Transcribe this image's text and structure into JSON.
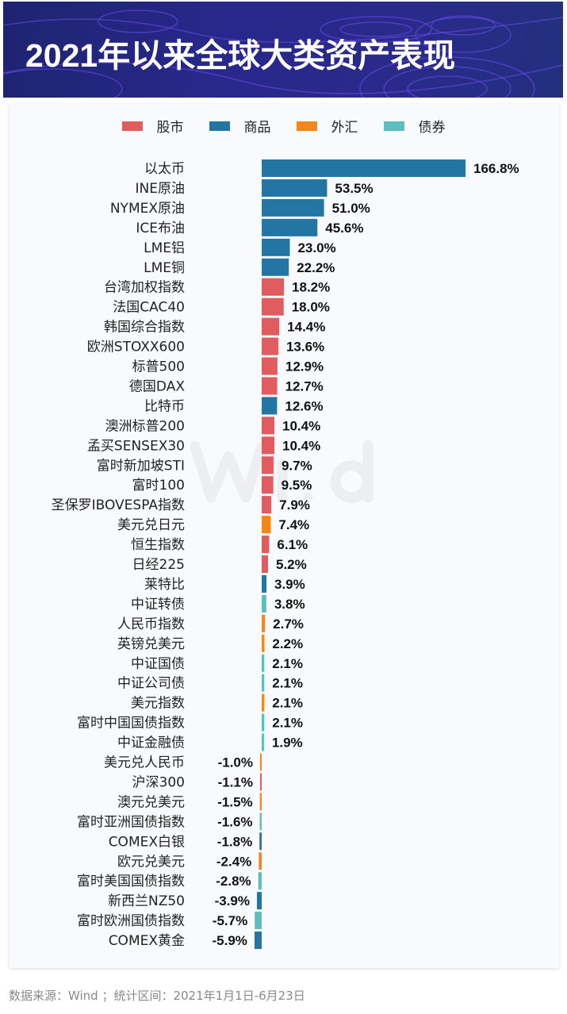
{
  "header": {
    "title": "2021年以来全球大类资产表现"
  },
  "footer": {
    "text": "数据来源：Wind ；统计区间：2021年1月1日-6月23日"
  },
  "watermark": "Wind",
  "chart_data": {
    "type": "bar",
    "orientation": "horizontal",
    "unit": "%",
    "legend": [
      {
        "key": "stock",
        "label": "股市",
        "color": "#e05c5f"
      },
      {
        "key": "commodity",
        "label": "商品",
        "color": "#2376a3"
      },
      {
        "key": "fx",
        "label": "外汇",
        "color": "#f5861b"
      },
      {
        "key": "bond",
        "label": "债券",
        "color": "#5bbfbf"
      }
    ],
    "legend_position": "top-center",
    "categories": [
      "以太币",
      "INE原油",
      "NYMEX原油",
      "ICE布油",
      "LME铝",
      "LME铜",
      "台湾加权指数",
      "法国CAC40",
      "韩国综合指数",
      "欧洲STOXX600",
      "标普500",
      "德国DAX",
      "比特币",
      "澳洲标普200",
      "孟买SENSEX30",
      "富时新加坡STI",
      "富时100",
      "圣保罗IBOVESPA指数",
      "美元兑日元",
      "恒生指数",
      "日经225",
      "莱特比",
      "中证转债",
      "人民币指数",
      "英镑兑美元",
      "中证国债",
      "中证公司债",
      "美元指数",
      "富时中国国债指数",
      "中证金融债",
      "美元兑人民币",
      "沪深300",
      "澳元兑美元",
      "富时亚洲国债指数",
      "COMEX白银",
      "欧元兑美元",
      "富时美国国债指数",
      "新西兰NZ50",
      "富时欧洲国债指数",
      "COMEX黄金"
    ],
    "values": [
      166.8,
      53.5,
      51.0,
      45.6,
      23.0,
      22.2,
      18.2,
      18.0,
      14.4,
      13.6,
      12.9,
      12.7,
      12.6,
      10.4,
      10.4,
      9.7,
      9.5,
      7.9,
      7.4,
      6.1,
      5.2,
      3.9,
      3.8,
      2.7,
      2.2,
      2.1,
      2.1,
      2.1,
      2.1,
      1.9,
      -1.0,
      -1.1,
      -1.5,
      -1.6,
      -1.8,
      -2.4,
      -2.8,
      -3.9,
      -5.7,
      -5.9
    ],
    "labels": [
      "166.8%",
      "53.5%",
      "51.0%",
      "45.6%",
      "23.0%",
      "22.2%",
      "18.2%",
      "18.0%",
      "14.4%",
      "13.6%",
      "12.9%",
      "12.7%",
      "12.6%",
      "10.4%",
      "10.4%",
      "9.7%",
      "9.5%",
      "7.9%",
      "7.4%",
      "6.1%",
      "5.2%",
      "3.9%",
      "3.8%",
      "2.7%",
      "2.2%",
      "2.1%",
      "2.1%",
      "2.1%",
      "2.1%",
      "1.9%",
      "-1.0%",
      "-1.1%",
      "-1.5%",
      "-1.6%",
      "-1.8%",
      "-2.4%",
      "-2.8%",
      "-3.9%",
      "-5.7%",
      "-5.9%"
    ],
    "groups": [
      "commodity",
      "commodity",
      "commodity",
      "commodity",
      "commodity",
      "commodity",
      "stock",
      "stock",
      "stock",
      "stock",
      "stock",
      "stock",
      "commodity",
      "stock",
      "stock",
      "stock",
      "stock",
      "stock",
      "fx",
      "stock",
      "stock",
      "commodity",
      "bond",
      "fx",
      "fx",
      "bond",
      "bond",
      "fx",
      "bond",
      "bond",
      "fx",
      "stock",
      "fx",
      "bond",
      "commodity",
      "fx",
      "bond",
      "commodity",
      "bond",
      "commodity"
    ]
  }
}
